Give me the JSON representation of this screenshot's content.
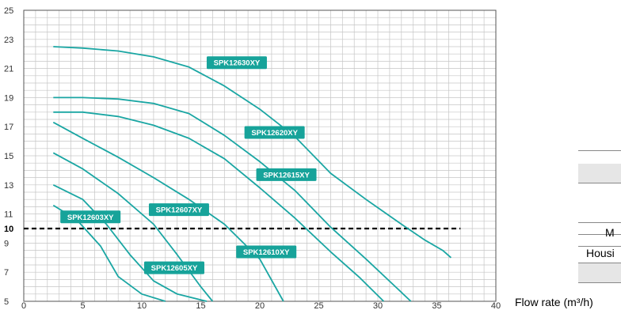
{
  "chart_data": {
    "type": "line",
    "title": "",
    "xlabel": "Flow rate (m³/h)",
    "ylabel": "",
    "xlim": [
      0,
      40
    ],
    "ylim": [
      5,
      25
    ],
    "x_ticks": [
      0,
      5,
      10,
      15,
      20,
      25,
      30,
      35,
      40
    ],
    "y_ticks": [
      5,
      7,
      9,
      10,
      11,
      13,
      15,
      17,
      19,
      21,
      23,
      25
    ],
    "y_tick_labels": [
      "5",
      "7",
      "9",
      "10",
      "11",
      "13",
      "15",
      "17",
      "19",
      "21",
      "23",
      "25"
    ],
    "grid": true,
    "reference_line": {
      "y": 10,
      "style": "dashed"
    },
    "line_color": "#1aa6a3",
    "label_color": "#17a39a",
    "series": [
      {
        "name": "SPK12630XY",
        "x": [
          2.5,
          5,
          8,
          11,
          14,
          17,
          20,
          23,
          26,
          29,
          32,
          34,
          35.5,
          36.2
        ],
        "y": [
          22.5,
          22.4,
          22.2,
          21.8,
          21.1,
          19.8,
          18.2,
          16.3,
          13.8,
          12.0,
          10.3,
          9.2,
          8.5,
          8.0
        ]
      },
      {
        "name": "SPK12620XY",
        "x": [
          2.5,
          5,
          8,
          11,
          14,
          17,
          20,
          23,
          26,
          29,
          31.5,
          32.8
        ],
        "y": [
          19.0,
          19.0,
          18.9,
          18.6,
          17.9,
          16.4,
          14.6,
          12.6,
          10.1,
          7.9,
          6.0,
          5.0
        ]
      },
      {
        "name": "SPK12615XY",
        "x": [
          2.5,
          5,
          8,
          11,
          14,
          17,
          20,
          23,
          26,
          28.5,
          30.5
        ],
        "y": [
          18.0,
          18.0,
          17.7,
          17.1,
          16.2,
          14.8,
          12.8,
          10.7,
          8.4,
          6.6,
          5.0
        ]
      },
      {
        "name": "SPK12610XY",
        "x": [
          2.5,
          5,
          8,
          11,
          14,
          17,
          20,
          22
        ],
        "y": [
          17.3,
          16.2,
          14.9,
          13.5,
          12.0,
          10.3,
          7.9,
          5.0
        ]
      },
      {
        "name": "SPK12607XY",
        "x": [
          2.5,
          5,
          8,
          11,
          13,
          15,
          16
        ],
        "y": [
          15.2,
          14.1,
          12.4,
          10.3,
          8.2,
          6.0,
          5.0
        ]
      },
      {
        "name": "SPK12605XY",
        "x": [
          2.5,
          5,
          7,
          9,
          11,
          13,
          15.5
        ],
        "y": [
          13.0,
          12.0,
          10.3,
          8.2,
          6.4,
          5.5,
          5.0
        ]
      },
      {
        "name": "SPK12603XY",
        "x": [
          2.5,
          4.5,
          6.5,
          8,
          10,
          12
        ],
        "y": [
          11.6,
          10.6,
          8.8,
          6.7,
          5.5,
          5.0
        ]
      }
    ],
    "series_labels": [
      {
        "series": "SPK12630XY",
        "at_x": 15.5,
        "at_y": 21.4
      },
      {
        "series": "SPK12620XY",
        "at_x": 18.7,
        "at_y": 16.6
      },
      {
        "series": "SPK12615XY",
        "at_x": 19.7,
        "at_y": 13.7
      },
      {
        "series": "SPK12607XY",
        "at_x": 10.6,
        "at_y": 11.3
      },
      {
        "series": "SPK12603XY",
        "at_x": 3.1,
        "at_y": 10.8
      },
      {
        "series": "SPK12610XY",
        "at_x": 18.0,
        "at_y": 8.4
      },
      {
        "series": "SPK12605XY",
        "at_x": 10.2,
        "at_y": 7.3
      }
    ]
  },
  "side_table": {
    "rows": [
      "M",
      "Housi"
    ]
  }
}
